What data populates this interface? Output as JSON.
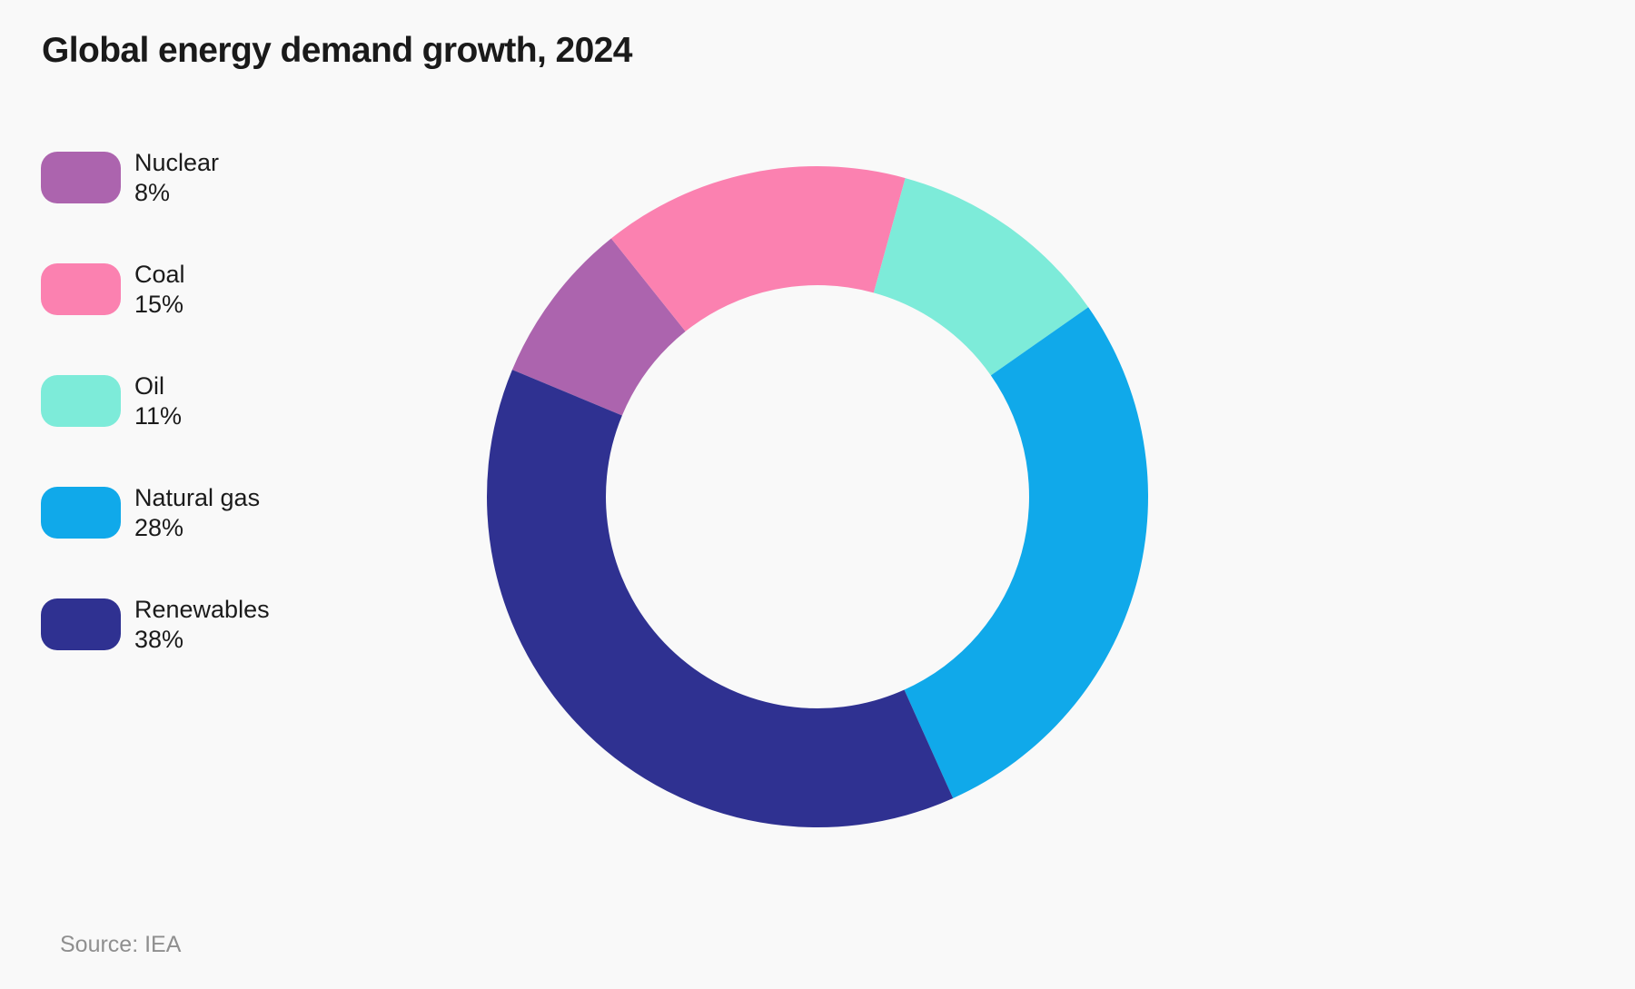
{
  "page": {
    "background": "#F9F9F9",
    "title": "Global energy demand growth, 2024",
    "source": "Source: IEA"
  },
  "colors": {
    "title_text": "#1A1A1A",
    "legend_text": "#1B1B1B",
    "source_text": "#8F8F8F"
  },
  "legend": {
    "position": "left",
    "items": [
      {
        "label": "Nuclear",
        "pct_label": "8%",
        "color": "#AC64AE"
      },
      {
        "label": "Coal",
        "pct_label": "15%",
        "color": "#FB81B0"
      },
      {
        "label": "Oil",
        "pct_label": "11%",
        "color": "#7DEBD9"
      },
      {
        "label": "Natural gas",
        "pct_label": "28%",
        "color": "#10A9EA"
      },
      {
        "label": "Renewables",
        "pct_label": "38%",
        "color": "#2F3191"
      }
    ]
  },
  "chart_data": {
    "type": "pie",
    "donut": true,
    "title": "Global energy demand growth, 2024",
    "categories": [
      "Nuclear",
      "Coal",
      "Oil",
      "Natural gas",
      "Renewables"
    ],
    "values": [
      8,
      15,
      11,
      28,
      38
    ],
    "unit": "%",
    "colors": [
      "#AC64AE",
      "#FB81B0",
      "#7DEBD9",
      "#10A9EA",
      "#2F3191"
    ],
    "start_angle_deg": 292.6,
    "direction": "clockwise",
    "outer_radius_px": 364,
    "inner_radius_ratio": 0.64,
    "legend_position": "left",
    "source": "IEA"
  }
}
